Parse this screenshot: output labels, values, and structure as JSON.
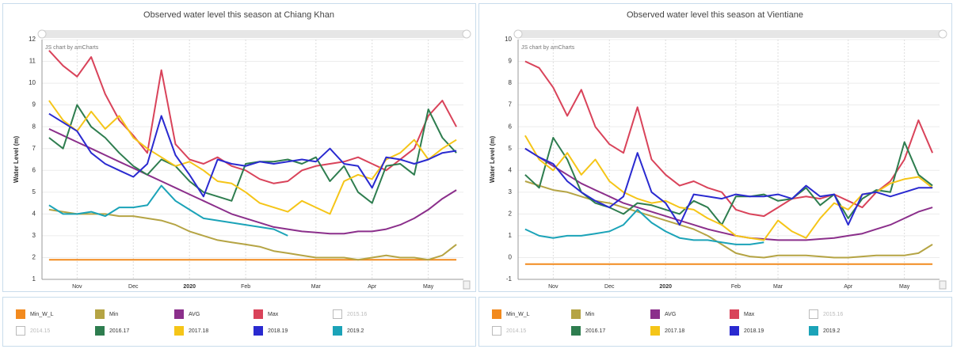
{
  "chart_data": [
    {
      "type": "line",
      "title": "Observed water level this season at Chiang Khan",
      "y_label": "Water Level (m)",
      "watermark": "JS chart by amCharts",
      "categories": [
        null,
        null,
        "Nov",
        null,
        null,
        null,
        "Dec",
        null,
        null,
        null,
        "2020",
        null,
        null,
        null,
        "Feb",
        null,
        null,
        null,
        null,
        "Mar",
        null,
        null,
        null,
        "Apr",
        null,
        null,
        null,
        "May",
        null,
        null
      ],
      "ylim": [
        1,
        12
      ],
      "yticks": [
        1,
        2,
        3,
        4,
        5,
        6,
        7,
        8,
        9,
        10,
        11,
        12
      ],
      "grid": true,
      "series": [
        {
          "name": "Min_W_L",
          "color": "#f28a1e",
          "values": [
            1.9,
            1.9,
            1.9,
            1.9,
            1.9,
            1.9,
            1.9,
            1.9,
            1.9,
            1.9,
            1.9,
            1.9,
            1.9,
            1.9,
            1.9,
            1.9,
            1.9,
            1.9,
            1.9,
            1.9,
            1.9,
            1.9,
            1.9,
            1.9,
            1.9,
            1.9,
            1.9,
            1.9,
            1.9,
            1.9
          ]
        },
        {
          "name": "Min",
          "color": "#b5a444",
          "values": [
            4.2,
            4.1,
            4.0,
            4.0,
            4.0,
            3.9,
            3.9,
            3.8,
            3.7,
            3.5,
            3.2,
            3.0,
            2.8,
            2.7,
            2.6,
            2.5,
            2.3,
            2.2,
            2.1,
            2.0,
            2.0,
            2.0,
            1.9,
            2.0,
            2.1,
            2.0,
            2.0,
            1.9,
            2.1,
            2.6
          ]
        },
        {
          "name": "AVG",
          "color": "#8b2f8b",
          "values": [
            7.9,
            7.6,
            7.3,
            7.0,
            6.7,
            6.4,
            6.1,
            5.8,
            5.5,
            5.2,
            4.9,
            4.6,
            4.3,
            4.0,
            3.8,
            3.6,
            3.4,
            3.3,
            3.2,
            3.15,
            3.1,
            3.1,
            3.2,
            3.2,
            3.3,
            3.5,
            3.8,
            4.2,
            4.7,
            5.1
          ]
        },
        {
          "name": "Max",
          "color": "#d9435a",
          "values": [
            11.5,
            10.8,
            10.3,
            11.2,
            9.5,
            8.3,
            7.6,
            6.8,
            10.6,
            7.2,
            6.5,
            6.3,
            6.6,
            6.2,
            6.0,
            5.6,
            5.4,
            5.5,
            6.0,
            6.2,
            6.3,
            6.4,
            6.6,
            6.3,
            6.0,
            6.5,
            7.0,
            8.5,
            9.2,
            8.0
          ]
        },
        {
          "name": "2015.16",
          "color": "#bbbbbb",
          "visible": false
        },
        {
          "name": "2014.15",
          "color": "#bbbbbb",
          "visible": false
        },
        {
          "name": "2016.17",
          "color": "#2e7d4f",
          "values": [
            7.5,
            7.0,
            9.0,
            8.0,
            7.5,
            6.8,
            6.2,
            5.8,
            6.5,
            6.2,
            5.5,
            5.0,
            4.8,
            4.6,
            6.3,
            6.4,
            6.4,
            6.5,
            6.3,
            6.6,
            5.5,
            6.2,
            5.0,
            4.5,
            6.2,
            6.3,
            5.8,
            8.8,
            7.5,
            6.8
          ]
        },
        {
          "name": "2017.18",
          "color": "#f5c518",
          "values": [
            9.2,
            8.3,
            7.8,
            8.7,
            7.9,
            8.5,
            7.5,
            7.0,
            6.6,
            6.2,
            6.4,
            6.0,
            5.5,
            5.4,
            5.0,
            4.5,
            4.3,
            4.1,
            4.6,
            4.3,
            4.0,
            5.5,
            5.8,
            5.6,
            6.5,
            6.8,
            7.4,
            6.5,
            7.0,
            7.4
          ]
        },
        {
          "name": "2018.19",
          "color": "#2a2ad0",
          "values": [
            8.6,
            8.2,
            7.8,
            6.8,
            6.3,
            6.0,
            5.7,
            6.3,
            8.5,
            6.7,
            5.8,
            4.8,
            6.5,
            6.3,
            6.2,
            6.4,
            6.3,
            6.4,
            6.5,
            6.4,
            7.0,
            6.3,
            6.2,
            5.2,
            6.6,
            6.5,
            6.3,
            6.5,
            6.8,
            6.9
          ]
        },
        {
          "name": "2019.2",
          "color": "#1ba3b8",
          "values": [
            4.4,
            4.0,
            4.0,
            4.1,
            3.9,
            4.3,
            4.3,
            4.4,
            5.3,
            4.6,
            4.2,
            3.8,
            3.7,
            3.6,
            3.5,
            3.4,
            3.3,
            3.0,
            null,
            null,
            null,
            null,
            null,
            null,
            null,
            null,
            null,
            null,
            null,
            null
          ]
        }
      ]
    },
    {
      "type": "line",
      "title": "Observed water level this season at Vientiane",
      "y_label": "Water Level (m)",
      "watermark": "JS chart by amCharts",
      "categories": [
        null,
        null,
        "Nov",
        null,
        null,
        null,
        "Dec",
        null,
        null,
        null,
        "2020",
        null,
        null,
        null,
        null,
        "Feb",
        null,
        null,
        "Mar",
        null,
        null,
        null,
        null,
        "Apr",
        null,
        null,
        null,
        "May",
        null,
        null
      ],
      "ylim": [
        -1,
        10
      ],
      "yticks": [
        -1,
        0,
        1,
        2,
        3,
        4,
        5,
        6,
        7,
        8,
        9,
        10
      ],
      "grid": true,
      "series": [
        {
          "name": "Min_W_L",
          "color": "#f28a1e",
          "values": [
            -0.3,
            -0.3,
            -0.3,
            -0.3,
            -0.3,
            -0.3,
            -0.3,
            -0.3,
            -0.3,
            -0.3,
            -0.3,
            -0.3,
            -0.3,
            -0.3,
            -0.3,
            -0.3,
            -0.3,
            -0.3,
            -0.3,
            -0.3,
            -0.3,
            -0.3,
            -0.3,
            -0.3,
            -0.3,
            -0.3,
            -0.3,
            -0.3,
            -0.3,
            -0.3
          ]
        },
        {
          "name": "Min",
          "color": "#b5a444",
          "values": [
            3.5,
            3.3,
            3.1,
            3.0,
            2.8,
            2.6,
            2.5,
            2.3,
            2.1,
            1.9,
            1.7,
            1.5,
            1.3,
            1.0,
            0.6,
            0.2,
            0.05,
            0.0,
            0.1,
            0.1,
            0.1,
            0.05,
            0.0,
            0.0,
            0.05,
            0.1,
            0.1,
            0.1,
            0.2,
            0.6
          ]
        },
        {
          "name": "AVG",
          "color": "#8b2f8b",
          "values": [
            5.0,
            4.6,
            4.2,
            3.8,
            3.4,
            3.1,
            2.8,
            2.5,
            2.3,
            2.1,
            1.9,
            1.7,
            1.5,
            1.3,
            1.15,
            1.0,
            0.9,
            0.85,
            0.8,
            0.8,
            0.8,
            0.85,
            0.9,
            1.0,
            1.1,
            1.3,
            1.5,
            1.8,
            2.1,
            2.3
          ]
        },
        {
          "name": "Max",
          "color": "#d9435a",
          "values": [
            9.0,
            8.7,
            7.8,
            6.5,
            7.7,
            6.0,
            5.2,
            4.8,
            6.9,
            4.5,
            3.8,
            3.3,
            3.5,
            3.2,
            3.0,
            2.2,
            2.0,
            1.9,
            2.3,
            2.7,
            2.8,
            2.7,
            2.9,
            2.6,
            2.3,
            3.0,
            3.5,
            4.5,
            6.3,
            4.8
          ]
        },
        {
          "name": "2015.16",
          "color": "#bbbbbb",
          "visible": false
        },
        {
          "name": "2014.15",
          "color": "#bbbbbb",
          "visible": false
        },
        {
          "name": "2016.17",
          "color": "#2e7d4f",
          "values": [
            3.8,
            3.2,
            5.5,
            4.5,
            3.0,
            2.5,
            2.3,
            2.0,
            2.5,
            2.4,
            2.2,
            2.0,
            2.6,
            2.3,
            1.5,
            2.8,
            2.8,
            2.9,
            2.6,
            2.7,
            3.2,
            2.4,
            2.9,
            1.8,
            2.7,
            3.1,
            3.0,
            5.3,
            3.8,
            3.3
          ]
        },
        {
          "name": "2017.18",
          "color": "#f5c518",
          "values": [
            5.6,
            4.5,
            4.0,
            4.8,
            3.8,
            4.5,
            3.5,
            3.0,
            2.7,
            2.5,
            2.6,
            2.3,
            2.2,
            1.8,
            1.5,
            1.0,
            0.9,
            0.8,
            1.7,
            1.2,
            0.9,
            1.8,
            2.5,
            2.2,
            2.9,
            3.0,
            3.4,
            3.6,
            3.7,
            3.2
          ]
        },
        {
          "name": "2018.19",
          "color": "#2a2ad0",
          "values": [
            5.0,
            4.6,
            4.3,
            3.5,
            3.0,
            2.6,
            2.3,
            2.8,
            4.8,
            3.0,
            2.5,
            1.5,
            2.9,
            2.8,
            2.7,
            2.9,
            2.8,
            2.8,
            2.9,
            2.7,
            3.3,
            2.8,
            2.9,
            1.5,
            2.9,
            3.0,
            2.8,
            3.0,
            3.2,
            3.2
          ]
        },
        {
          "name": "2019.2",
          "color": "#1ba3b8",
          "values": [
            1.3,
            1.0,
            0.9,
            1.0,
            1.0,
            1.1,
            1.2,
            1.5,
            2.2,
            1.6,
            1.2,
            0.9,
            0.8,
            0.8,
            0.7,
            0.6,
            0.6,
            0.7,
            null,
            null,
            null,
            null,
            null,
            null,
            null,
            null,
            null,
            null,
            null,
            null
          ]
        }
      ]
    }
  ]
}
